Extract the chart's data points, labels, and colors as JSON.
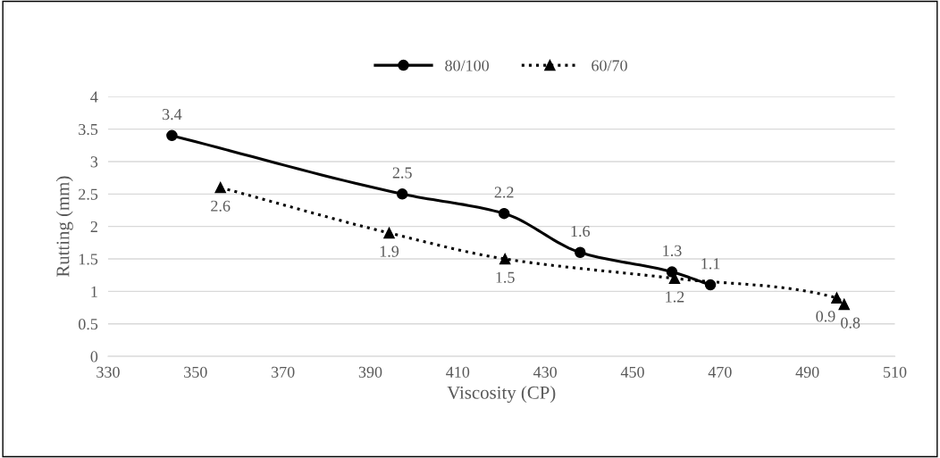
{
  "chart_data": {
    "type": "line",
    "xlabel": "Viscosity (CP)",
    "ylabel": "Rutting (mm)",
    "xlim": [
      330,
      510
    ],
    "xticks": [
      330,
      350,
      370,
      390,
      410,
      430,
      450,
      470,
      490,
      510
    ],
    "ylim": [
      0,
      4
    ],
    "yticks": [
      0,
      0.5,
      1,
      1.5,
      2,
      2.5,
      3,
      3.5,
      4
    ],
    "grid": "y",
    "legend": "top",
    "data_labels": true,
    "series": [
      {
        "name": "80/100",
        "color": "#000000",
        "marker": "circle",
        "line_style": "solid",
        "x": [
          344.6,
          397.3,
          420.6,
          438,
          459,
          467.8
        ],
        "values": [
          3.4,
          2.5,
          2.2,
          1.6,
          1.3,
          1.1
        ]
      },
      {
        "name": "60/70",
        "color": "#000000",
        "marker": "triangle",
        "line_style": "dotted",
        "x": [
          355.7,
          394.3,
          420.8,
          459.6,
          496.7,
          498.4
        ],
        "values": [
          2.6,
          1.9,
          1.5,
          1.2,
          0.9,
          0.8
        ]
      }
    ]
  }
}
